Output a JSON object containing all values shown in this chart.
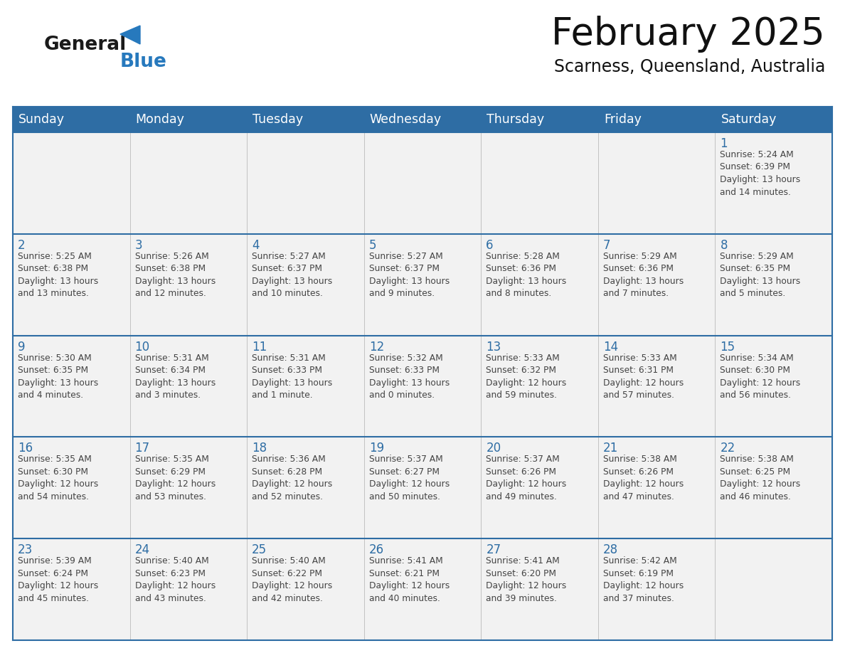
{
  "title": "February 2025",
  "subtitle": "Scarness, Queensland, Australia",
  "days_of_week": [
    "Sunday",
    "Monday",
    "Tuesday",
    "Wednesday",
    "Thursday",
    "Friday",
    "Saturday"
  ],
  "header_bg": "#2E6DA4",
  "header_text": "#FFFFFF",
  "cell_bg": "#F2F2F2",
  "border_color": "#2E6DA4",
  "text_color": "#444444",
  "day_num_color": "#2E6DA4",
  "logo_general_color": "#1a1a1a",
  "logo_blue_color": "#2779BD",
  "calendar_data": [
    [
      {
        "day": null
      },
      {
        "day": null
      },
      {
        "day": null
      },
      {
        "day": null
      },
      {
        "day": null
      },
      {
        "day": null
      },
      {
        "day": 1,
        "sunrise": "5:24 AM",
        "sunset": "6:39 PM",
        "daylight_h": "13",
        "daylight_m": "14 minutes."
      }
    ],
    [
      {
        "day": 2,
        "sunrise": "5:25 AM",
        "sunset": "6:38 PM",
        "daylight_h": "13",
        "daylight_m": "13 minutes."
      },
      {
        "day": 3,
        "sunrise": "5:26 AM",
        "sunset": "6:38 PM",
        "daylight_h": "13",
        "daylight_m": "12 minutes."
      },
      {
        "day": 4,
        "sunrise": "5:27 AM",
        "sunset": "6:37 PM",
        "daylight_h": "13",
        "daylight_m": "10 minutes."
      },
      {
        "day": 5,
        "sunrise": "5:27 AM",
        "sunset": "6:37 PM",
        "daylight_h": "13",
        "daylight_m": "9 minutes."
      },
      {
        "day": 6,
        "sunrise": "5:28 AM",
        "sunset": "6:36 PM",
        "daylight_h": "13",
        "daylight_m": "8 minutes."
      },
      {
        "day": 7,
        "sunrise": "5:29 AM",
        "sunset": "6:36 PM",
        "daylight_h": "13",
        "daylight_m": "7 minutes."
      },
      {
        "day": 8,
        "sunrise": "5:29 AM",
        "sunset": "6:35 PM",
        "daylight_h": "13",
        "daylight_m": "5 minutes."
      }
    ],
    [
      {
        "day": 9,
        "sunrise": "5:30 AM",
        "sunset": "6:35 PM",
        "daylight_h": "13",
        "daylight_m": "4 minutes."
      },
      {
        "day": 10,
        "sunrise": "5:31 AM",
        "sunset": "6:34 PM",
        "daylight_h": "13",
        "daylight_m": "3 minutes."
      },
      {
        "day": 11,
        "sunrise": "5:31 AM",
        "sunset": "6:33 PM",
        "daylight_h": "13",
        "daylight_m": "1 minute."
      },
      {
        "day": 12,
        "sunrise": "5:32 AM",
        "sunset": "6:33 PM",
        "daylight_h": "13",
        "daylight_m": "0 minutes."
      },
      {
        "day": 13,
        "sunrise": "5:33 AM",
        "sunset": "6:32 PM",
        "daylight_h": "12",
        "daylight_m": "59 minutes."
      },
      {
        "day": 14,
        "sunrise": "5:33 AM",
        "sunset": "6:31 PM",
        "daylight_h": "12",
        "daylight_m": "57 minutes."
      },
      {
        "day": 15,
        "sunrise": "5:34 AM",
        "sunset": "6:30 PM",
        "daylight_h": "12",
        "daylight_m": "56 minutes."
      }
    ],
    [
      {
        "day": 16,
        "sunrise": "5:35 AM",
        "sunset": "6:30 PM",
        "daylight_h": "12",
        "daylight_m": "54 minutes."
      },
      {
        "day": 17,
        "sunrise": "5:35 AM",
        "sunset": "6:29 PM",
        "daylight_h": "12",
        "daylight_m": "53 minutes."
      },
      {
        "day": 18,
        "sunrise": "5:36 AM",
        "sunset": "6:28 PM",
        "daylight_h": "12",
        "daylight_m": "52 minutes."
      },
      {
        "day": 19,
        "sunrise": "5:37 AM",
        "sunset": "6:27 PM",
        "daylight_h": "12",
        "daylight_m": "50 minutes."
      },
      {
        "day": 20,
        "sunrise": "5:37 AM",
        "sunset": "6:26 PM",
        "daylight_h": "12",
        "daylight_m": "49 minutes."
      },
      {
        "day": 21,
        "sunrise": "5:38 AM",
        "sunset": "6:26 PM",
        "daylight_h": "12",
        "daylight_m": "47 minutes."
      },
      {
        "day": 22,
        "sunrise": "5:38 AM",
        "sunset": "6:25 PM",
        "daylight_h": "12",
        "daylight_m": "46 minutes."
      }
    ],
    [
      {
        "day": 23,
        "sunrise": "5:39 AM",
        "sunset": "6:24 PM",
        "daylight_h": "12",
        "daylight_m": "45 minutes."
      },
      {
        "day": 24,
        "sunrise": "5:40 AM",
        "sunset": "6:23 PM",
        "daylight_h": "12",
        "daylight_m": "43 minutes."
      },
      {
        "day": 25,
        "sunrise": "5:40 AM",
        "sunset": "6:22 PM",
        "daylight_h": "12",
        "daylight_m": "42 minutes."
      },
      {
        "day": 26,
        "sunrise": "5:41 AM",
        "sunset": "6:21 PM",
        "daylight_h": "12",
        "daylight_m": "40 minutes."
      },
      {
        "day": 27,
        "sunrise": "5:41 AM",
        "sunset": "6:20 PM",
        "daylight_h": "12",
        "daylight_m": "39 minutes."
      },
      {
        "day": 28,
        "sunrise": "5:42 AM",
        "sunset": "6:19 PM",
        "daylight_h": "12",
        "daylight_m": "37 minutes."
      },
      {
        "day": null
      }
    ]
  ],
  "fig_width": 11.88,
  "fig_height": 9.18,
  "dpi": 100
}
